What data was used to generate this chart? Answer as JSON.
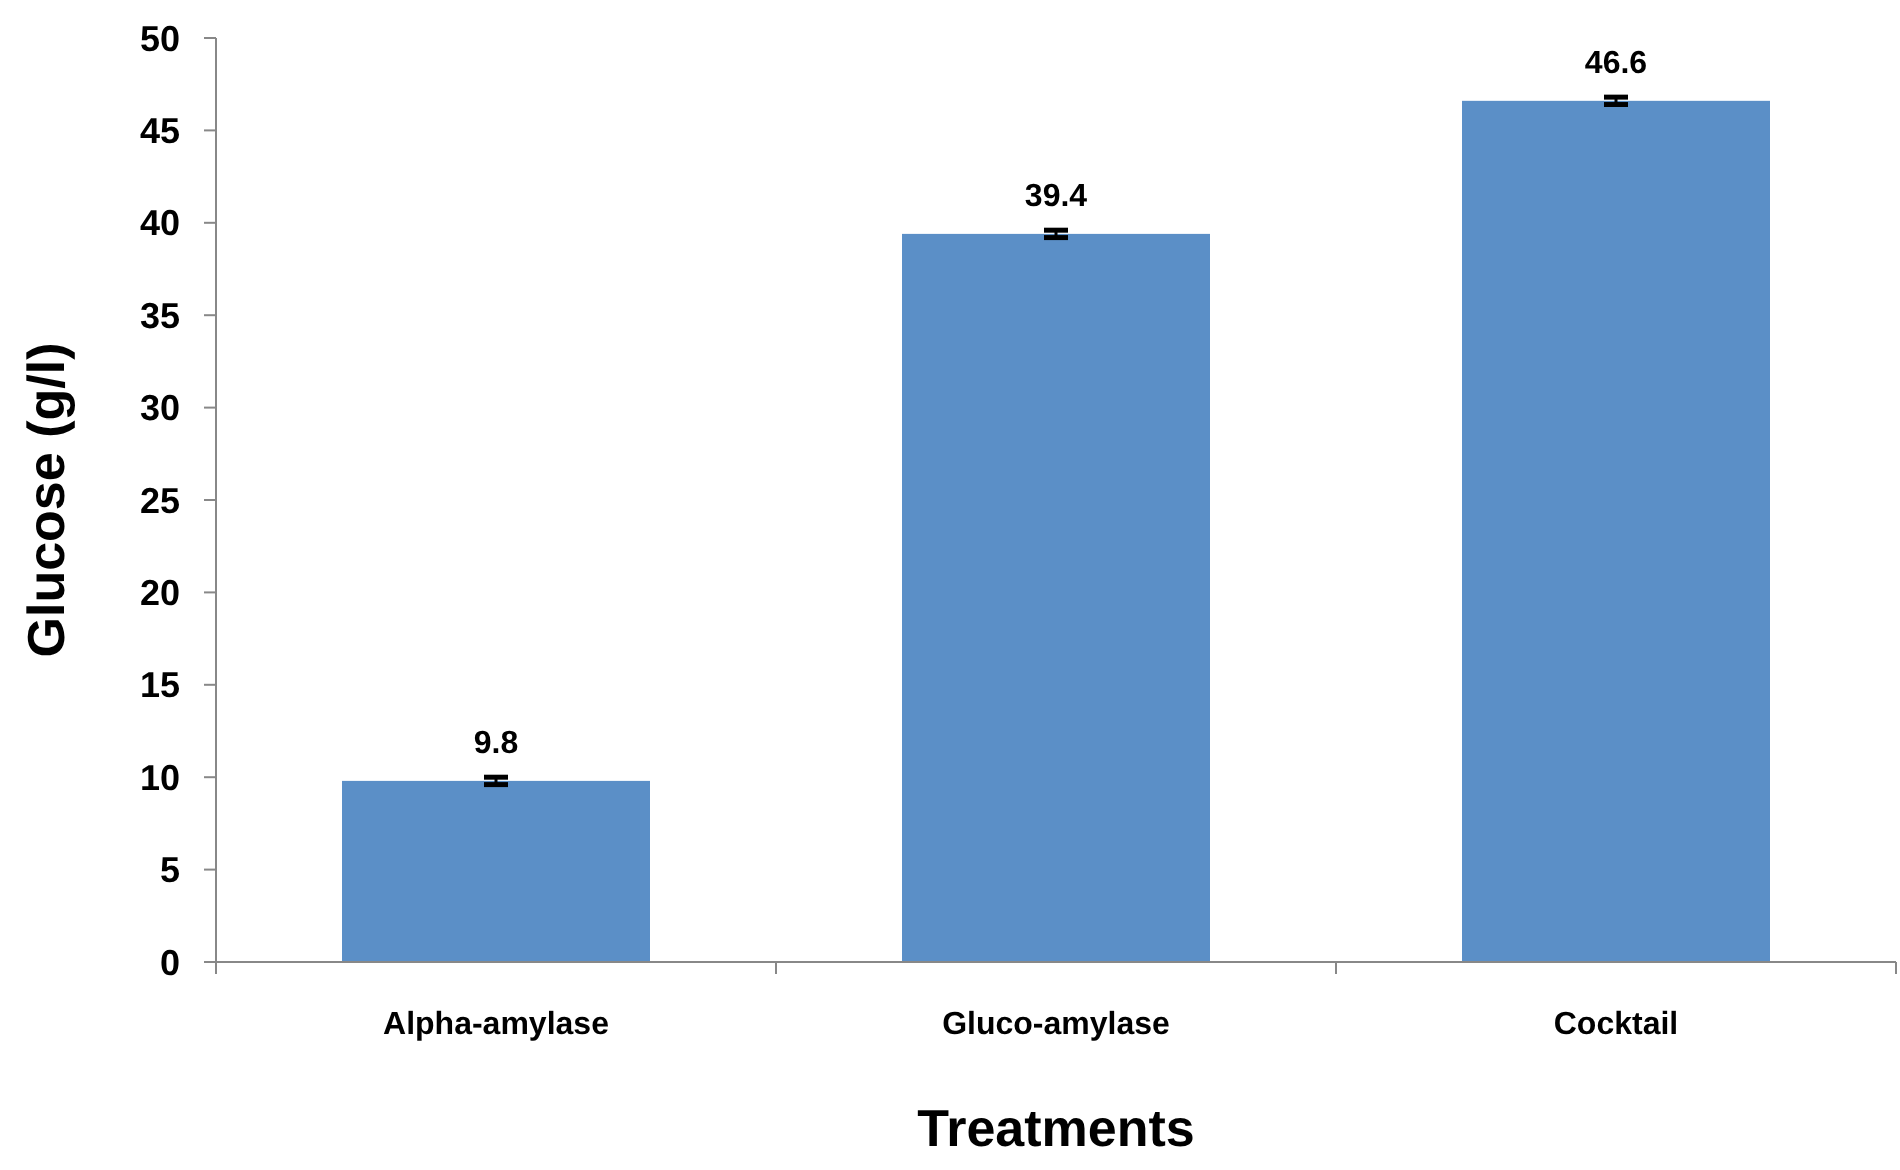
{
  "chart_data": {
    "type": "bar",
    "xlabel": "Treatments",
    "ylabel": "Glucose (g/l)",
    "categories": [
      "Alpha-amylase",
      "Gluco-amylase",
      "Cocktail"
    ],
    "values": [
      9.8,
      39.4,
      46.6
    ],
    "errors": [
      0.2,
      0.2,
      0.2
    ],
    "color": "#5b8fc7",
    "ylim": [
      0,
      50
    ],
    "yticks": [
      0,
      5,
      10,
      15,
      20,
      25,
      30,
      35,
      40,
      45,
      50
    ],
    "data_labels": true,
    "grid": false
  }
}
